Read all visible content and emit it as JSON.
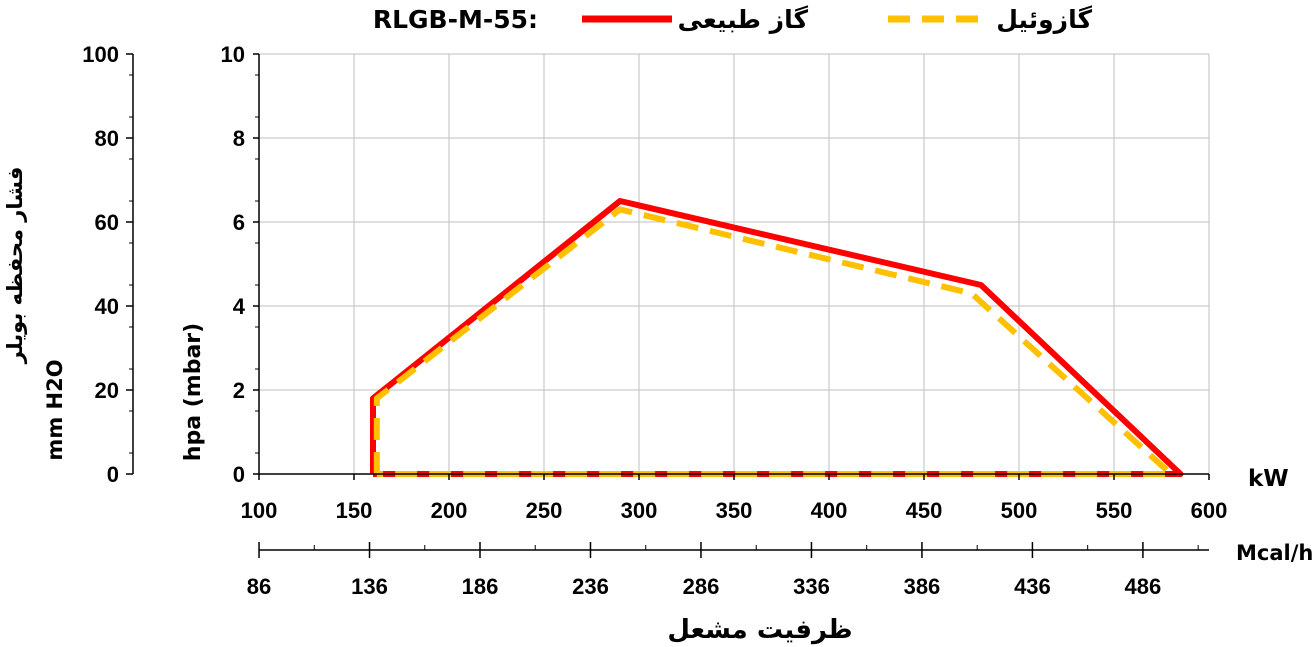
{
  "chart_data": {
    "type": "line",
    "title": "RLGB-M-55:",
    "x_axis": {
      "unit": "kW",
      "range": [
        100,
        600
      ],
      "ticks": [
        "100",
        "150",
        "200",
        "250",
        "300",
        "350",
        "400",
        "450",
        "500",
        "550",
        "600"
      ]
    },
    "x2_axis": {
      "unit": "Mcal/h",
      "ticks": [
        "86",
        "136",
        "186",
        "236",
        "286",
        "336",
        "386",
        "436",
        "486"
      ]
    },
    "xlabel": "ظرفیت مشعل",
    "y_axis": {
      "label": "hpa (mbar)",
      "range": [
        0,
        10
      ],
      "ticks": [
        "0",
        "2",
        "4",
        "6",
        "8",
        "10"
      ]
    },
    "y2_axis": {
      "label_line1": "فشار محفظه بویلر",
      "label_line2": "mm H2O",
      "range": [
        0,
        100
      ],
      "ticks": [
        "0",
        "20",
        "40",
        "60",
        "80",
        "100"
      ]
    },
    "legend_position": "top",
    "grid": true,
    "series": [
      {
        "name": "گاز طبیعی",
        "color": "#ff0000",
        "style": "solid",
        "x": [
          160,
          160,
          290,
          480,
          585,
          160
        ],
        "y": [
          0,
          1.8,
          6.5,
          4.5,
          0,
          0
        ]
      },
      {
        "name": "گازوئیل",
        "color": "#ffc000",
        "style": "dashed",
        "x": [
          162,
          162,
          290,
          475,
          580,
          162
        ],
        "y": [
          0,
          1.8,
          6.3,
          4.3,
          0,
          0
        ]
      }
    ]
  }
}
